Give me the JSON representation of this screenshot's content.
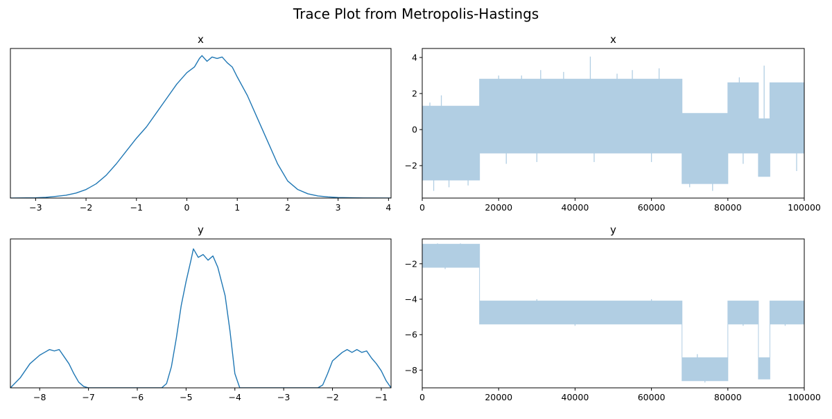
{
  "figure": {
    "title": "Trace Plot from Metropolis-Hastings"
  },
  "colors": {
    "kde_line": "#1f77b4",
    "trace_fill": "#b1cee3"
  },
  "chart_data": [
    {
      "id": "kde-x",
      "type": "line",
      "title": "x",
      "xlabel": "",
      "ylabel": "",
      "xlim": [
        -3.5,
        4.05
      ],
      "ylim": [
        0,
        1.05
      ],
      "xticks": [
        -3,
        -2,
        -1,
        0,
        1,
        2,
        3,
        4
      ],
      "yticks": [],
      "grid": false,
      "series": [
        {
          "x": [
            -3.5,
            -3.0,
            -2.8,
            -2.6,
            -2.4,
            -2.2,
            -2.0,
            -1.8,
            -1.6,
            -1.4,
            -1.2,
            -1.0,
            -0.8,
            -0.6,
            -0.4,
            -0.2,
            0.0,
            0.15,
            0.25,
            0.3,
            0.4,
            0.5,
            0.6,
            0.7,
            0.8,
            0.9,
            1.0,
            1.2,
            1.4,
            1.6,
            1.8,
            2.0,
            2.2,
            2.4,
            2.6,
            2.8,
            3.0,
            3.5,
            4.05
          ],
          "y": [
            0.0,
            0.002,
            0.005,
            0.012,
            0.02,
            0.035,
            0.06,
            0.1,
            0.16,
            0.24,
            0.33,
            0.42,
            0.5,
            0.6,
            0.7,
            0.8,
            0.88,
            0.92,
            0.98,
            1.0,
            0.96,
            0.99,
            0.98,
            0.99,
            0.95,
            0.92,
            0.85,
            0.72,
            0.56,
            0.4,
            0.24,
            0.12,
            0.06,
            0.03,
            0.015,
            0.008,
            0.004,
            0.001,
            0.0
          ]
        }
      ]
    },
    {
      "id": "trace-x",
      "type": "area",
      "title": "x",
      "xlabel": "",
      "ylabel": "",
      "xlim": [
        0,
        100000
      ],
      "ylim": [
        -3.8,
        4.5
      ],
      "xticks": [
        0,
        20000,
        40000,
        60000,
        80000,
        100000
      ],
      "yticks": [
        -2,
        0,
        2,
        4
      ],
      "grid": false,
      "band": {
        "x": [
          0,
          15000,
          15000,
          68000,
          68000,
          80000,
          80000,
          88000,
          88000,
          91000,
          91000,
          100000
        ],
        "upper": [
          1.3,
          1.3,
          2.8,
          2.8,
          0.9,
          0.9,
          2.6,
          2.6,
          0.6,
          0.6,
          2.6,
          2.6
        ],
        "lower": [
          -2.8,
          -2.8,
          -1.3,
          -1.3,
          -3.0,
          -3.0,
          -1.3,
          -1.3,
          -2.6,
          -2.6,
          -1.3,
          -1.3
        ],
        "spikes_high": [
          [
            2000,
            1.5
          ],
          [
            5000,
            1.9
          ],
          [
            20000,
            3.0
          ],
          [
            26000,
            3.0
          ],
          [
            31000,
            3.3
          ],
          [
            37000,
            3.2
          ],
          [
            44000,
            4.05
          ],
          [
            51000,
            3.1
          ],
          [
            55000,
            3.3
          ],
          [
            62000,
            3.4
          ],
          [
            83000,
            2.9
          ],
          [
            89500,
            3.55
          ],
          [
            95000,
            2.6
          ]
        ],
        "spikes_low": [
          [
            3000,
            -3.4
          ],
          [
            7000,
            -3.2
          ],
          [
            12000,
            -3.1
          ],
          [
            22000,
            -1.9
          ],
          [
            30000,
            -1.8
          ],
          [
            45000,
            -1.8
          ],
          [
            60000,
            -1.8
          ],
          [
            70000,
            -3.2
          ],
          [
            76000,
            -3.4
          ],
          [
            84000,
            -1.9
          ],
          [
            89000,
            -2.6
          ],
          [
            98000,
            -2.3
          ]
        ]
      }
    },
    {
      "id": "kde-y",
      "type": "line",
      "title": "y",
      "xlabel": "",
      "ylabel": "",
      "xlim": [
        -8.6,
        -0.8
      ],
      "ylim": [
        0,
        1.05
      ],
      "xticks": [
        -8,
        -7,
        -6,
        -5,
        -4,
        -3,
        -2,
        -1
      ],
      "yticks": [],
      "grid": false,
      "series": [
        {
          "x": [
            -8.6,
            -8.4,
            -8.2,
            -8.0,
            -7.9,
            -7.8,
            -7.7,
            -7.6,
            -7.5,
            -7.4,
            -7.3,
            -7.2,
            -7.1,
            -7.0,
            -6.0,
            -5.5,
            -5.4,
            -5.3,
            -5.2,
            -5.1,
            -5.0,
            -4.9,
            -4.85,
            -4.75,
            -4.65,
            -4.55,
            -4.45,
            -4.35,
            -4.2,
            -4.1,
            -4.0,
            -3.9,
            -3.0,
            -2.3,
            -2.2,
            -2.1,
            -2.0,
            -1.9,
            -1.8,
            -1.7,
            -1.6,
            -1.5,
            -1.4,
            -1.3,
            -1.2,
            -1.1,
            -1.0,
            -0.9,
            -0.8
          ],
          "y": [
            0.0,
            0.07,
            0.17,
            0.23,
            0.25,
            0.27,
            0.26,
            0.27,
            0.22,
            0.17,
            0.1,
            0.04,
            0.01,
            0.0,
            0.0,
            0.0,
            0.03,
            0.15,
            0.35,
            0.58,
            0.75,
            0.9,
            0.98,
            0.92,
            0.94,
            0.9,
            0.93,
            0.85,
            0.65,
            0.4,
            0.1,
            0.0,
            0.0,
            0.0,
            0.02,
            0.1,
            0.19,
            0.22,
            0.25,
            0.27,
            0.25,
            0.27,
            0.25,
            0.26,
            0.21,
            0.17,
            0.12,
            0.05,
            0.0
          ]
        }
      ]
    },
    {
      "id": "trace-y",
      "type": "area",
      "title": "y",
      "xlabel": "",
      "ylabel": "",
      "xlim": [
        0,
        100000
      ],
      "ylim": [
        -9.0,
        -0.6
      ],
      "xticks": [
        0,
        20000,
        40000,
        60000,
        80000,
        100000
      ],
      "yticks": [
        -2,
        -4,
        -6,
        -8
      ],
      "grid": false,
      "band": {
        "x": [
          0,
          15000,
          15000,
          68000,
          68000,
          80000,
          80000,
          88000,
          88000,
          91000,
          91000,
          100000
        ],
        "upper": [
          -0.9,
          -0.9,
          -4.1,
          -4.1,
          -7.3,
          -7.3,
          -4.1,
          -4.1,
          -7.3,
          -7.3,
          -4.1,
          -4.1
        ],
        "lower": [
          -2.2,
          -2.2,
          -5.4,
          -5.4,
          -8.6,
          -8.6,
          -5.4,
          -5.4,
          -8.5,
          -8.5,
          -5.4,
          -5.4
        ],
        "spikes_high": [
          [
            4000,
            -0.85
          ],
          [
            10000,
            -0.85
          ],
          [
            30000,
            -4.0
          ],
          [
            60000,
            -4.0
          ],
          [
            72000,
            -7.1
          ]
        ],
        "spikes_low": [
          [
            6000,
            -2.3
          ],
          [
            40000,
            -5.5
          ],
          [
            74000,
            -8.7
          ],
          [
            84000,
            -5.5
          ],
          [
            95000,
            -5.5
          ]
        ]
      }
    }
  ]
}
